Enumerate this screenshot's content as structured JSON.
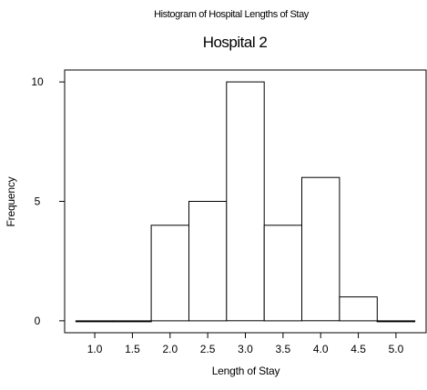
{
  "chart_data": {
    "type": "bar",
    "suptitle": "Histogram of Hospital Lengths of Stay",
    "title": "Hospital 2",
    "xlabel": "Length of Stay",
    "ylabel": "Frequency",
    "bins": [
      {
        "from": 0.75,
        "to": 1.25,
        "count": 0
      },
      {
        "from": 1.25,
        "to": 1.75,
        "count": 0
      },
      {
        "from": 1.75,
        "to": 2.25,
        "count": 4
      },
      {
        "from": 2.25,
        "to": 2.75,
        "count": 5
      },
      {
        "from": 2.75,
        "to": 3.25,
        "count": 10
      },
      {
        "from": 3.25,
        "to": 3.75,
        "count": 4
      },
      {
        "from": 3.75,
        "to": 4.25,
        "count": 6
      },
      {
        "from": 4.25,
        "to": 4.75,
        "count": 1
      },
      {
        "from": 4.75,
        "to": 5.25,
        "count": 0
      }
    ],
    "xticks": [
      1.0,
      1.5,
      2.0,
      2.5,
      3.0,
      3.5,
      4.0,
      4.5,
      5.0
    ],
    "xtick_labels": [
      "1.0",
      "1.5",
      "2.0",
      "2.5",
      "3.0",
      "3.5",
      "4.0",
      "4.5",
      "5.0"
    ],
    "yticks": [
      0,
      5,
      10
    ],
    "ytick_labels": [
      "0",
      "5",
      "10"
    ],
    "xlim": [
      0.6,
      5.4
    ],
    "ylim": [
      -0.5,
      10.5
    ],
    "grid": false,
    "colors": {
      "bar_fill": "#ffffff",
      "bar_edge": "#000000",
      "frame": "#000000"
    }
  }
}
